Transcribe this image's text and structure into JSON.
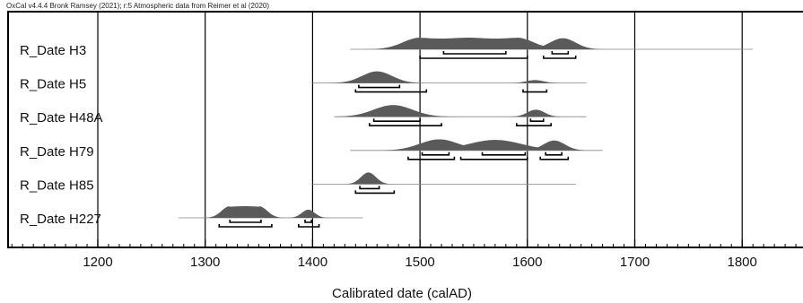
{
  "chart_data": {
    "type": "area",
    "credit": "OxCal v4.4.4 Bronk Ramsey (2021); r:5 Atmospheric data from Reimer et al (2020)",
    "xlabel": "Calibrated date (calAD)",
    "xlim": [
      1120,
      1870
    ],
    "x_ticks": [
      1200,
      1300,
      1400,
      1500,
      1600,
      1700,
      1800
    ],
    "colors": {
      "distribution": "#5a5a5a",
      "range_bar": "#000000",
      "gridline": "#000000"
    },
    "series": [
      {
        "name": "R_Date H3",
        "line_range": [
          1435,
          1810
        ],
        "peaks": [
          {
            "center": 1545,
            "width": 35,
            "height": 1.0,
            "flat": true,
            "span": [
              1500,
              1590
            ]
          },
          {
            "center": 1633,
            "width": 12,
            "height": 0.95
          }
        ],
        "bars_68": [
          [
            1522,
            1580
          ],
          [
            1623,
            1638
          ]
        ],
        "bars_95": [
          [
            1500,
            1600
          ],
          [
            1615,
            1645
          ]
        ]
      },
      {
        "name": "R_Date H5",
        "line_range": [
          1400,
          1655
        ],
        "peaks": [
          {
            "center": 1460,
            "width": 14,
            "height": 1.0
          },
          {
            "center": 1607,
            "width": 8,
            "height": 0.25
          }
        ],
        "bars_68": [
          [
            1443,
            1481
          ]
        ],
        "bars_95": [
          [
            1440,
            1506
          ],
          [
            1596,
            1618
          ]
        ]
      },
      {
        "name": "R_Date H48A",
        "line_range": [
          1420,
          1655
        ],
        "peaks": [
          {
            "center": 1475,
            "width": 18,
            "height": 1.0
          },
          {
            "center": 1608,
            "width": 8,
            "height": 0.6
          }
        ],
        "bars_68": [
          [
            1457,
            1500
          ],
          [
            1603,
            1615
          ]
        ],
        "bars_95": [
          [
            1453,
            1520
          ],
          [
            1590,
            1622
          ]
        ]
      },
      {
        "name": "R_Date H79",
        "line_range": [
          1435,
          1670
        ],
        "peaks": [
          {
            "center": 1518,
            "width": 18,
            "height": 0.95
          },
          {
            "center": 1570,
            "width": 25,
            "height": 0.9
          },
          {
            "center": 1625,
            "width": 10,
            "height": 0.85
          }
        ],
        "bars_68": [
          [
            1502,
            1527
          ],
          [
            1558,
            1598
          ],
          [
            1617,
            1632
          ]
        ],
        "bars_95": [
          [
            1489,
            1532
          ],
          [
            1538,
            1600
          ],
          [
            1612,
            1638
          ]
        ]
      },
      {
        "name": "R_Date H85",
        "line_range": [
          1400,
          1645
        ],
        "peaks": [
          {
            "center": 1452,
            "width": 7,
            "height": 1.0
          }
        ],
        "bars_68": [
          [
            1444,
            1462
          ]
        ],
        "bars_95": [
          [
            1440,
            1476
          ]
        ]
      },
      {
        "name": "R_Date H227",
        "line_range": [
          1275,
          1447
        ],
        "peaks": [
          {
            "center": 1337,
            "width": 17,
            "height": 1.0,
            "flat": true,
            "span": [
              1323,
              1350
            ]
          },
          {
            "center": 1396,
            "width": 6,
            "height": 0.7
          }
        ],
        "bars_68": [
          [
            1323,
            1352
          ],
          [
            1393,
            1399
          ]
        ],
        "bars_95": [
          [
            1313,
            1362
          ],
          [
            1387,
            1406
          ]
        ]
      }
    ]
  }
}
